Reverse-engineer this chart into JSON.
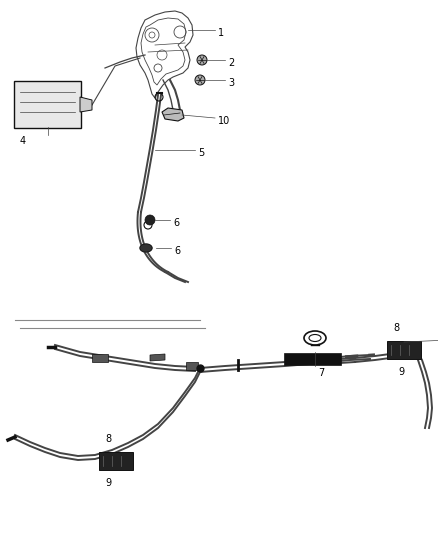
{
  "bg_color": "#ffffff",
  "line_color": "#666666",
  "dark_color": "#111111",
  "med_color": "#444444",
  "fig_width": 4.38,
  "fig_height": 5.33,
  "dpi": 100
}
